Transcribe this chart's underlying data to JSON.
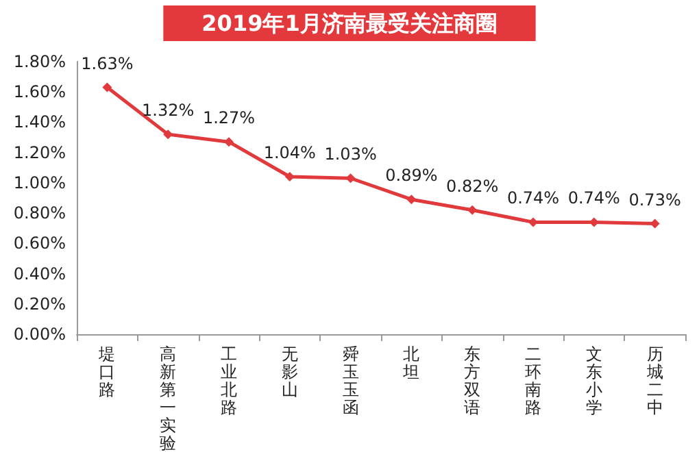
{
  "chart_data": {
    "type": "line",
    "title": "2019年1月济南最受关注商圈",
    "categories": [
      "堤口路",
      "高新第一实验",
      "工业北路",
      "无影山",
      "舜玉玉函",
      "北坦",
      "东方双语",
      "二环南路",
      "文东小学",
      "历城二中"
    ],
    "series": [
      {
        "color": "#e03a3c",
        "values": [
          1.63,
          1.32,
          1.27,
          1.04,
          1.03,
          0.89,
          0.82,
          0.74,
          0.74,
          0.73
        ],
        "value_labels": [
          "1.63%",
          "1.32%",
          "1.27%",
          "1.04%",
          "1.03%",
          "0.89%",
          "0.82%",
          "0.74%",
          "0.74%",
          "0.73%"
        ]
      }
    ],
    "ylim": [
      0,
      1.8
    ],
    "yticks": [
      {
        "value": 0,
        "label": "0.00%"
      },
      {
        "value": 0.2,
        "label": "0.20%"
      },
      {
        "value": 0.4,
        "label": "0.40%"
      },
      {
        "value": 0.6,
        "label": "0.60%"
      },
      {
        "value": 0.8,
        "label": "0.80%"
      },
      {
        "value": 1.0,
        "label": "1.00%"
      },
      {
        "value": 1.2,
        "label": "1.20%"
      },
      {
        "value": 1.4,
        "label": "1.40%"
      },
      {
        "value": 1.6,
        "label": "1.60%"
      },
      {
        "value": 1.8,
        "label": "1.80%"
      }
    ],
    "grid": false,
    "marker": "diamond",
    "line_style": "solid"
  }
}
